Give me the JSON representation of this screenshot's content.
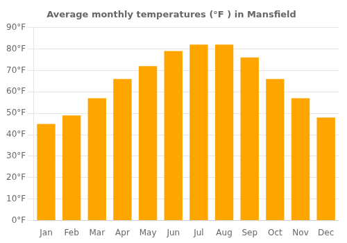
{
  "chart_data": {
    "type": "bar",
    "title": "Average monthly temperatures (°F ) in Mansfield",
    "categories": [
      "Jan",
      "Feb",
      "Mar",
      "Apr",
      "May",
      "Jun",
      "Jul",
      "Aug",
      "Sep",
      "Oct",
      "Nov",
      "Dec"
    ],
    "values": [
      45,
      49,
      57,
      66,
      72,
      79,
      82,
      82,
      76,
      66,
      57,
      48
    ],
    "color": "#FFA500",
    "ylim": [
      0,
      90
    ],
    "yticks": [
      {
        "value": 0,
        "label": "0°F"
      },
      {
        "value": 10,
        "label": "10°F"
      },
      {
        "value": 20,
        "label": "20°F"
      },
      {
        "value": 30,
        "label": "30°F"
      },
      {
        "value": 40,
        "label": "40°F"
      },
      {
        "value": 50,
        "label": "50°F"
      },
      {
        "value": 60,
        "label": "60°F"
      },
      {
        "value": 70,
        "label": "70°F"
      },
      {
        "value": 80,
        "label": "80°F"
      },
      {
        "value": 90,
        "label": "90°F"
      }
    ],
    "grid": true
  }
}
